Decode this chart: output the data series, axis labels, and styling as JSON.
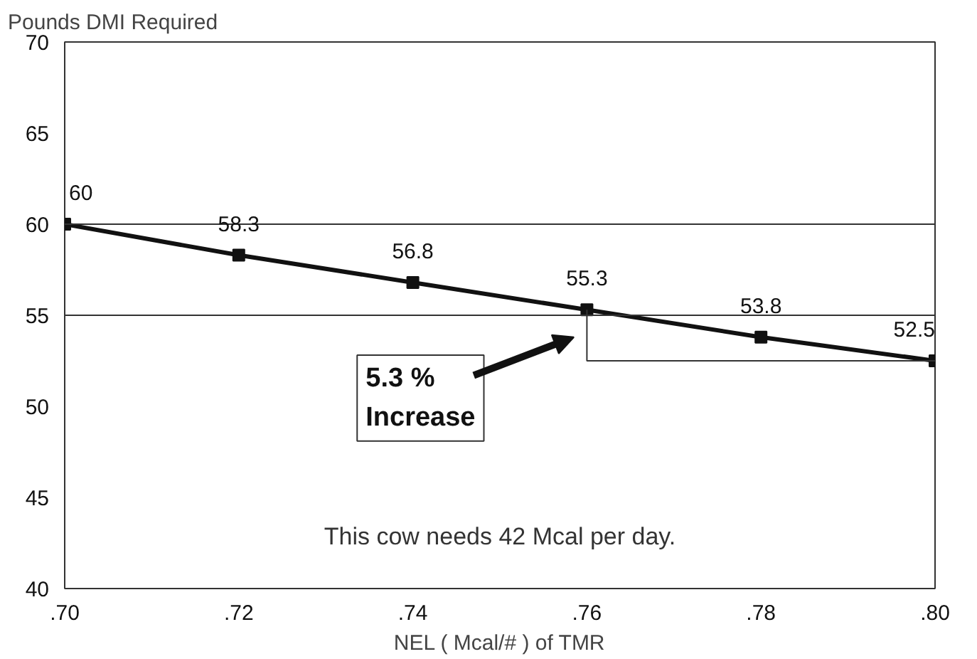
{
  "chart_data": {
    "type": "line",
    "xlabel": "NEL ( Mcal/# ) of TMR",
    "ylabel": "Pounds DMI Required",
    "x": [
      0.7,
      0.72,
      0.74,
      0.76,
      0.78,
      0.8
    ],
    "series": [
      {
        "color": "#111111",
        "values": [
          60,
          58.3,
          56.8,
          55.3,
          53.8,
          52.5
        ]
      }
    ],
    "xlim": [
      0.7,
      0.8
    ],
    "xticks": [
      {
        "value": 0.7,
        "label": ".70"
      },
      {
        "value": 0.72,
        "label": ".72"
      },
      {
        "value": 0.74,
        "label": ".74"
      },
      {
        "value": 0.76,
        "label": ".76"
      },
      {
        "value": 0.78,
        "label": ".78"
      },
      {
        "value": 0.8,
        "label": ".80"
      }
    ],
    "ylim": [
      40,
      70
    ],
    "yticks": [
      40,
      45,
      50,
      55,
      60,
      65,
      70
    ],
    "ref_lines": [
      {
        "axis": "y",
        "value": 60
      },
      {
        "axis": "y",
        "value": 55
      }
    ],
    "data_labels": true,
    "marker": "square",
    "line_style": "solid",
    "grid": false,
    "annotations": [
      "5.3 %\nIncrease",
      "This cow needs 42 Mcal per day."
    ]
  }
}
